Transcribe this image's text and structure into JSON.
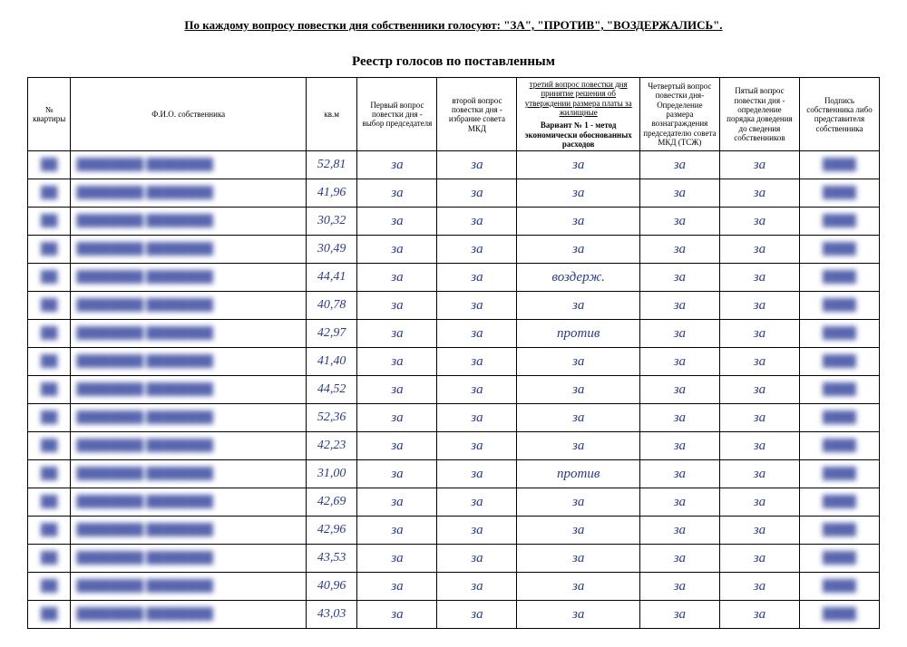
{
  "header_line": "По каждому вопросу повестки дня собственники голосуют: \"ЗА\", \"ПРОТИВ\", \"ВОЗДЕРЖАЛИСЬ\".",
  "title": "Реестр голосов по поставленным",
  "columns": {
    "num": "№ квартиры",
    "name": "Ф.И.О. собственника",
    "kvm": "кв.м",
    "q1": "Первый вопрос повестки дня - выбор председателя",
    "q2": "второй вопрос повестки дня - избрание совета МКД",
    "q3_top": "третий вопрос повестки дня принятие решения об утверждении размера платы за жилищные",
    "q3_bottom": "Вариант № 1 - метод экономически обоснованных расходов",
    "q4": "Четвертый вопрос повестки дня- Определение размера вознаграждения председателю совета МКД (ТСЖ)",
    "q5": "Пятый вопрос повестки дня - определение порядка доведения до сведения собственников",
    "sig": "Подпись собственника либо представителя собственника"
  },
  "handwriting_color": "#2a3a8f",
  "rows": [
    {
      "kvm": "52,81",
      "q1": "за",
      "q2": "за",
      "q3": "за",
      "q4": "за",
      "q5": "за"
    },
    {
      "kvm": "41,96",
      "q1": "за",
      "q2": "за",
      "q3": "за",
      "q4": "за",
      "q5": "за"
    },
    {
      "kvm": "30,32",
      "q1": "за",
      "q2": "за",
      "q3": "за",
      "q4": "за",
      "q5": "за"
    },
    {
      "kvm": "30,49",
      "q1": "за",
      "q2": "за",
      "q3": "за",
      "q4": "за",
      "q5": "за"
    },
    {
      "kvm": "44,41",
      "q1": "за",
      "q2": "за",
      "q3": "воздерж.",
      "q4": "за",
      "q5": "за"
    },
    {
      "kvm": "40,78",
      "q1": "за",
      "q2": "за",
      "q3": "за",
      "q4": "за",
      "q5": "за"
    },
    {
      "kvm": "42,97",
      "q1": "за",
      "q2": "за",
      "q3": "против",
      "q4": "за",
      "q5": "за"
    },
    {
      "kvm": "41,40",
      "q1": "за",
      "q2": "за",
      "q3": "за",
      "q4": "за",
      "q5": "за"
    },
    {
      "kvm": "44,52",
      "q1": "за",
      "q2": "за",
      "q3": "за",
      "q4": "за",
      "q5": "за"
    },
    {
      "kvm": "52,36",
      "q1": "за",
      "q2": "за",
      "q3": "за",
      "q4": "за",
      "q5": "за"
    },
    {
      "kvm": "42,23",
      "q1": "за",
      "q2": "за",
      "q3": "за",
      "q4": "за",
      "q5": "за"
    },
    {
      "kvm": "31,00",
      "q1": "за",
      "q2": "за",
      "q3": "против",
      "q4": "за",
      "q5": "за"
    },
    {
      "kvm": "42,69",
      "q1": "за",
      "q2": "за",
      "q3": "за",
      "q4": "за",
      "q5": "за"
    },
    {
      "kvm": "42,96",
      "q1": "за",
      "q2": "за",
      "q3": "за",
      "q4": "за",
      "q5": "за"
    },
    {
      "kvm": "43,53",
      "q1": "за",
      "q2": "за",
      "q3": "за",
      "q4": "за",
      "q5": "за"
    },
    {
      "kvm": "40,96",
      "q1": "за",
      "q2": "за",
      "q3": "за",
      "q4": "за",
      "q5": "за"
    },
    {
      "kvm": "43,03",
      "q1": "за",
      "q2": "за",
      "q3": "за",
      "q4": "за",
      "q5": "за"
    }
  ],
  "redacted_placeholder": "████████",
  "redacted_num": "██",
  "redacted_sig": "████"
}
